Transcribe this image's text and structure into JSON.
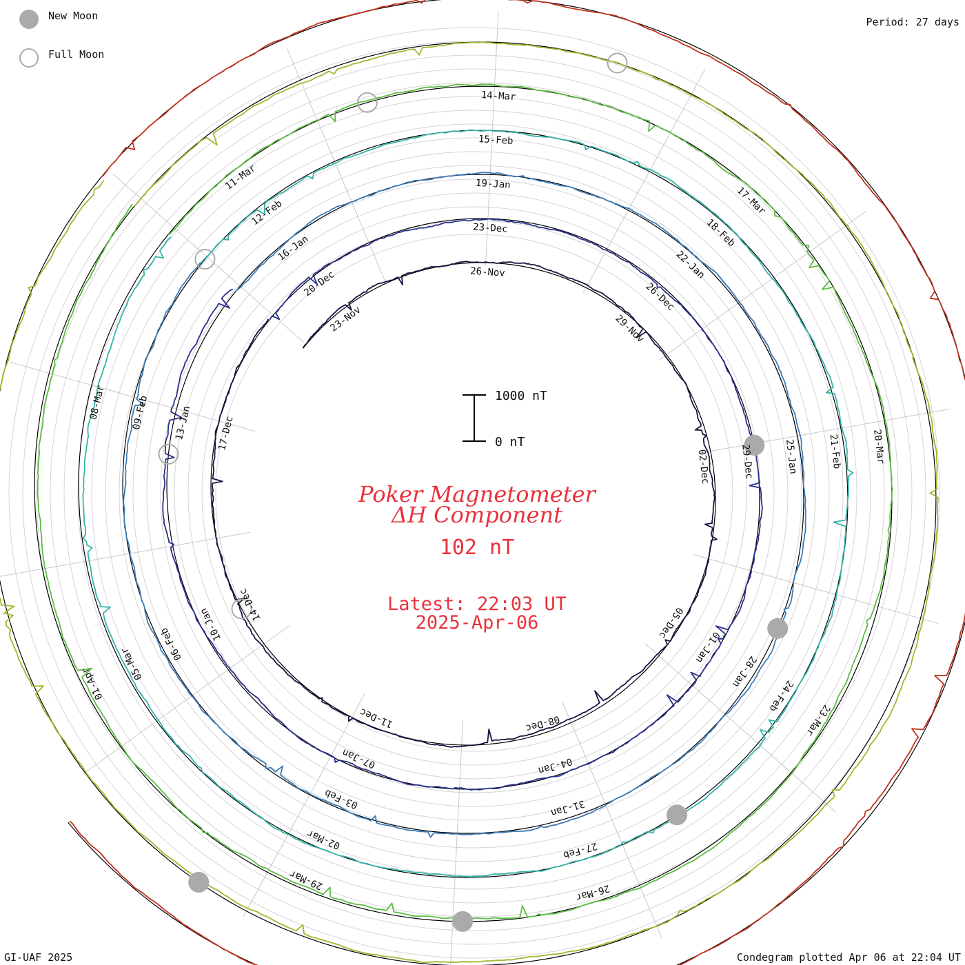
{
  "chart_data": {
    "type": "line",
    "title": "Poker Magnetometer",
    "subtitle": "ΔH Component",
    "current_value": "102 nT",
    "latest_label": "Latest: 22:03 UT",
    "latest_date": "2025-Apr-06",
    "period": "Period: 27 days",
    "scale_bar": {
      "top_label": "1000 nT",
      "bottom_label": "0 nT",
      "value_nT": 1000
    },
    "legend": [
      {
        "label": "New Moon",
        "symbol": "filled-circle",
        "color": "#aaaaaa"
      },
      {
        "label": "Full Moon",
        "symbol": "open-circle",
        "color": "#aaaaaa"
      }
    ],
    "footer_left": "GI-UAF 2025",
    "footer_right": "Condegram plotted Apr 06 at 22:04 UT",
    "series": [
      {
        "color": "#1a1440",
        "date_labels": [
          "23-Nov",
          "26-Nov",
          "29-Nov",
          "02-Dec",
          "05-Dec",
          "08-Dec",
          "11-Dec",
          "14-Dec",
          "17-Dec"
        ]
      },
      {
        "color": "#28308c",
        "date_labels": [
          "20-Dec",
          "23-Dec",
          "26-Dec",
          "29-Dec"
        ]
      },
      {
        "color": "#3c7cb8",
        "date_labels": [
          "01-Jan",
          "04-Jan",
          "07-Jan",
          "10-Jan",
          "13-Jan",
          "16-Jan",
          "19-Jan",
          "22-Jan",
          "25-Jan",
          "28-Jan",
          "31-Jan"
        ]
      },
      {
        "color": "#34b4a8",
        "date_labels": []
      },
      {
        "color": "#5cbc44",
        "date_labels": [
          "03-Feb",
          "06-Feb",
          "09-Feb",
          "12-Feb",
          "15-Feb",
          "18-Feb",
          "21-Feb",
          "24-Feb",
          "27-Feb"
        ]
      },
      {
        "color": "#a8b42c",
        "date_labels": [
          "02-Mar",
          "05-Mar",
          "08-Mar",
          "11-Mar",
          "14-Mar",
          "17-Mar",
          "20-Mar",
          "23-Mar",
          "26-Mar",
          "29-Mar"
        ]
      },
      {
        "color": "#c0321c",
        "date_labels": [
          "01-Apr"
        ]
      }
    ],
    "moons": [
      {
        "type": "full"
      },
      {
        "type": "new"
      },
      {
        "type": "full"
      },
      {
        "type": "new"
      },
      {
        "type": "full"
      },
      {
        "type": "new"
      },
      {
        "type": "full"
      },
      {
        "type": "new"
      },
      {
        "type": "full"
      },
      {
        "type": "new"
      }
    ]
  }
}
